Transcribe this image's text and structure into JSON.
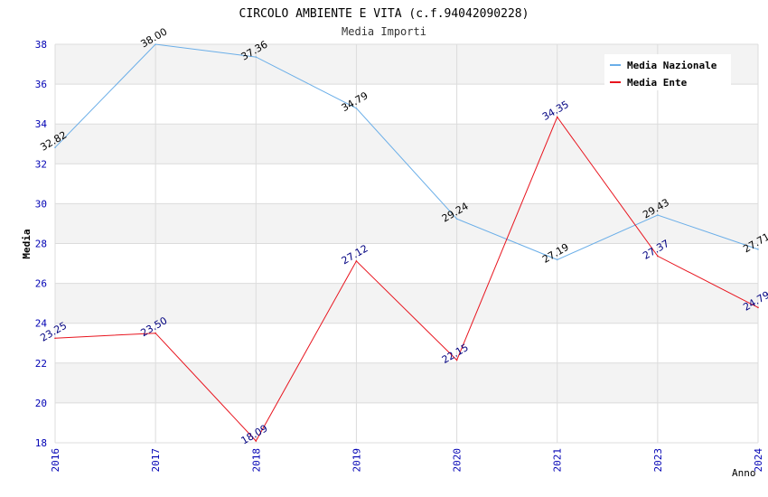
{
  "chart_data": {
    "type": "line",
    "title": "CIRCOLO AMBIENTE E VITA (c.f.94042090228)",
    "subtitle": "Media Importi",
    "xlabel": "Anno",
    "ylabel": "Media",
    "categories": [
      "2016",
      "2017",
      "2018",
      "2019",
      "2020",
      "2021",
      "2023",
      "2024"
    ],
    "ylim": [
      18,
      38
    ],
    "yticks": [
      "18",
      "20",
      "22",
      "24",
      "26",
      "28",
      "30",
      "32",
      "34",
      "36",
      "38"
    ],
    "grid": true,
    "legend_position": "top-right",
    "series": [
      {
        "name": "Media Nazionale",
        "color": "#6aaee8",
        "label_color": "#000000",
        "values": [
          32.82,
          38.0,
          37.36,
          34.79,
          29.24,
          27.19,
          29.43,
          27.71
        ],
        "labels": [
          "32.82",
          "38.00",
          "37.36",
          "34.79",
          "29.24",
          "27.19",
          "29.43",
          "27.71"
        ]
      },
      {
        "name": "Media Ente",
        "color": "#e8141e",
        "label_color": "#000080",
        "values": [
          23.25,
          23.5,
          18.09,
          27.12,
          22.15,
          34.35,
          27.37,
          24.79
        ],
        "labels": [
          "23.25",
          "23.50",
          "18.09",
          "27.12",
          "22.15",
          "34.35",
          "27.37",
          "24.79"
        ]
      }
    ]
  },
  "colors": {
    "band": "#f3f3f3",
    "gridline": "#dcdcdc",
    "axis_text": "#0000b4",
    "title_text": "#000000",
    "subtitle_text": "#333333"
  }
}
